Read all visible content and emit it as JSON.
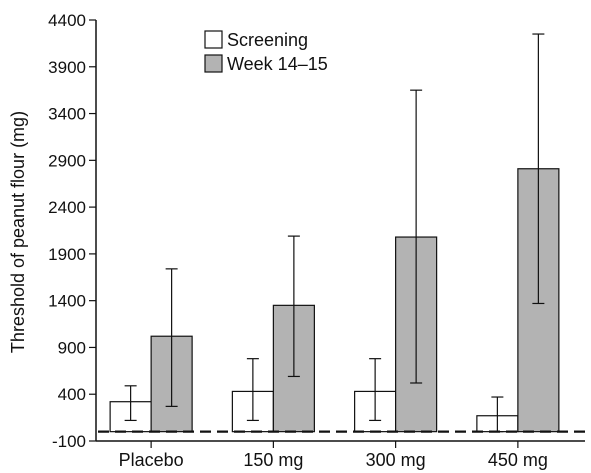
{
  "chart_data": {
    "type": "bar",
    "title": "",
    "xlabel": "",
    "ylabel": "Threshold of peanut flour (mg)",
    "ylim": [
      -100,
      4400
    ],
    "yticks": [
      -100,
      400,
      900,
      1400,
      1900,
      2400,
      2900,
      3400,
      3900,
      4400
    ],
    "categories": [
      "Placebo",
      "150 mg",
      "300 mg",
      "450 mg"
    ],
    "series": [
      {
        "name": "Screening",
        "color": "#ffffff",
        "values": [
          320,
          430,
          430,
          170
        ],
        "error_low": [
          120,
          120,
          120,
          0
        ],
        "error_high": [
          490,
          780,
          780,
          370
        ]
      },
      {
        "name": "Week 14–15",
        "color": "#b3b3b3",
        "values": [
          1020,
          1350,
          2080,
          2810
        ],
        "error_low": [
          270,
          590,
          520,
          1370
        ],
        "error_high": [
          1740,
          2090,
          3650,
          4250
        ]
      }
    ],
    "reference_line": {
      "value": 0,
      "style": "dashed"
    },
    "grid": false,
    "legend_position": "top-center"
  }
}
